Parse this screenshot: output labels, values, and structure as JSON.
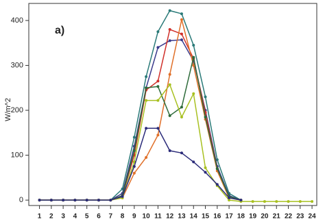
{
  "chart_data": {
    "type": "line",
    "y_label": "W/m^2",
    "annotation": "a)",
    "x": [
      1,
      2,
      3,
      4,
      5,
      6,
      7,
      8,
      9,
      10,
      11,
      12,
      13,
      14,
      15,
      16,
      17,
      18,
      19,
      20,
      21,
      22,
      23,
      24
    ],
    "xlim": [
      0.1,
      24.4
    ],
    "xticks": [
      1,
      2,
      3,
      4,
      5,
      6,
      7,
      8,
      9,
      10,
      11,
      12,
      13,
      14,
      15,
      16,
      17,
      18,
      19,
      20,
      21,
      22,
      23,
      24
    ],
    "ylim": [
      -12,
      438
    ],
    "yticks": [
      0,
      100,
      200,
      300,
      400
    ],
    "series": [
      {
        "color": "#2a7a78",
        "values": [
          0,
          0,
          0,
          0,
          0,
          0,
          0,
          25,
          140,
          275,
          375,
          422,
          415,
          345,
          230,
          90,
          15,
          0,
          null,
          null,
          null,
          null,
          null,
          null
        ]
      },
      {
        "color": "#3a3a8c",
        "values": [
          0,
          0,
          0,
          0,
          0,
          0,
          0,
          15,
          120,
          250,
          340,
          355,
          357,
          310,
          200,
          75,
          10,
          0,
          null,
          null,
          null,
          null,
          null,
          null
        ]
      },
      {
        "color": "#d0302a",
        "values": [
          0,
          0,
          0,
          0,
          0,
          0,
          0,
          10,
          100,
          245,
          265,
          380,
          370,
          315,
          195,
          70,
          5,
          0,
          null,
          null,
          null,
          null,
          null,
          null
        ]
      },
      {
        "color": "#e0702a",
        "values": [
          0,
          0,
          0,
          0,
          0,
          0,
          0,
          5,
          60,
          95,
          145,
          280,
          402,
          300,
          180,
          65,
          5,
          0,
          null,
          null,
          null,
          null,
          null,
          null
        ]
      },
      {
        "color": "#2e6b3a",
        "values": [
          0,
          0,
          0,
          0,
          0,
          0,
          0,
          10,
          110,
          250,
          253,
          188,
          207,
          318,
          185,
          70,
          8,
          0,
          null,
          null,
          null,
          null,
          null,
          null
        ]
      },
      {
        "color": "#a8c020",
        "values": [
          0,
          0,
          0,
          0,
          0,
          0,
          0,
          5,
          85,
          222,
          222,
          257,
          185,
          237,
          72,
          32,
          0,
          -3,
          -3,
          -3,
          -3,
          -3,
          -3,
          -3
        ]
      },
      {
        "color": "#2c2c7a",
        "values": [
          0,
          0,
          0,
          0,
          0,
          0,
          0,
          8,
          75,
          160,
          160,
          110,
          105,
          85,
          62,
          35,
          5,
          0,
          null,
          null,
          null,
          null,
          null,
          null
        ]
      }
    ]
  }
}
